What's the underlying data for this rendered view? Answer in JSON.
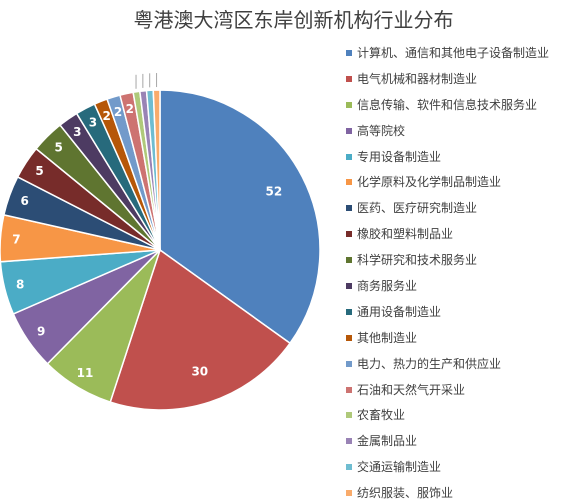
{
  "title": "粤港澳大湾区东岸创新机构行业分布",
  "chart_data": {
    "type": "pie",
    "title": "粤港澳大湾区东岸创新机构行业分布",
    "legend_position": "right",
    "slices": [
      {
        "label": "计算机、通信和其他电子设备制造业",
        "value": 52,
        "color": "#4F81BD"
      },
      {
        "label": "电气机械和器材制造业",
        "value": 30,
        "color": "#C0504D"
      },
      {
        "label": "信息传输、软件和信息技术服务业",
        "value": 11,
        "color": "#9BBB59"
      },
      {
        "label": "高等院校",
        "value": 9,
        "color": "#8064A2"
      },
      {
        "label": "专用设备制造业",
        "value": 8,
        "color": "#4BACC6"
      },
      {
        "label": "化学原料及化学制品制造业",
        "value": 7,
        "color": "#F79646"
      },
      {
        "label": "医药、医疗研究制造业",
        "value": 6,
        "color": "#2C4D75"
      },
      {
        "label": "橡胶和塑料制品业",
        "value": 5,
        "color": "#772C2A"
      },
      {
        "label": "科学研究和技术服务业",
        "value": 5,
        "color": "#5F7530"
      },
      {
        "label": "商务服务业",
        "value": 3,
        "color": "#4D3B62"
      },
      {
        "label": "通用设备制造业",
        "value": 3,
        "color": "#276A7C"
      },
      {
        "label": "其他制造业",
        "value": 2,
        "color": "#B65708"
      },
      {
        "label": "电力、热力的生产和供应业",
        "value": 2,
        "color": "#729ACA"
      },
      {
        "label": "石油和天然气开采业",
        "value": 2,
        "color": "#CD7371"
      },
      {
        "label": "农畜牧业",
        "value": 1,
        "color": "#AFC97A"
      },
      {
        "label": "金属制品业",
        "value": 1,
        "color": "#9983B5"
      },
      {
        "label": "交通运输制造业",
        "value": 1,
        "color": "#6FBDD1"
      },
      {
        "label": "纺织服装、服饰业",
        "value": 1,
        "color": "#F9AB6B"
      }
    ]
  }
}
